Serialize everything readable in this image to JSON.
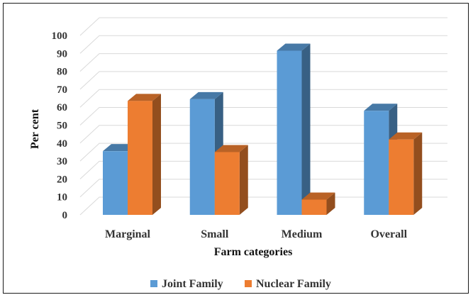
{
  "chart_data": {
    "type": "bar",
    "categories": [
      "Marginal",
      "Small",
      "Medium",
      "Overall"
    ],
    "series": [
      {
        "name": "Joint Family",
        "values": [
          35.5,
          64.5,
          91.5,
          58
        ],
        "color": "#5b9bd5"
      },
      {
        "name": "Nuclear Family",
        "values": [
          63.5,
          35,
          8.5,
          42
        ],
        "color": "#ed7d31"
      }
    ],
    "yticks": [
      "0",
      "10",
      "20",
      "30",
      "40",
      "50",
      "60",
      "70",
      "80",
      "90",
      "100"
    ],
    "ylim": [
      0,
      100
    ],
    "xlabel": "Farm categories",
    "ylabel": "Per cent",
    "grid": true,
    "legend_position": "bottom",
    "style": "3d-clustered-column"
  }
}
